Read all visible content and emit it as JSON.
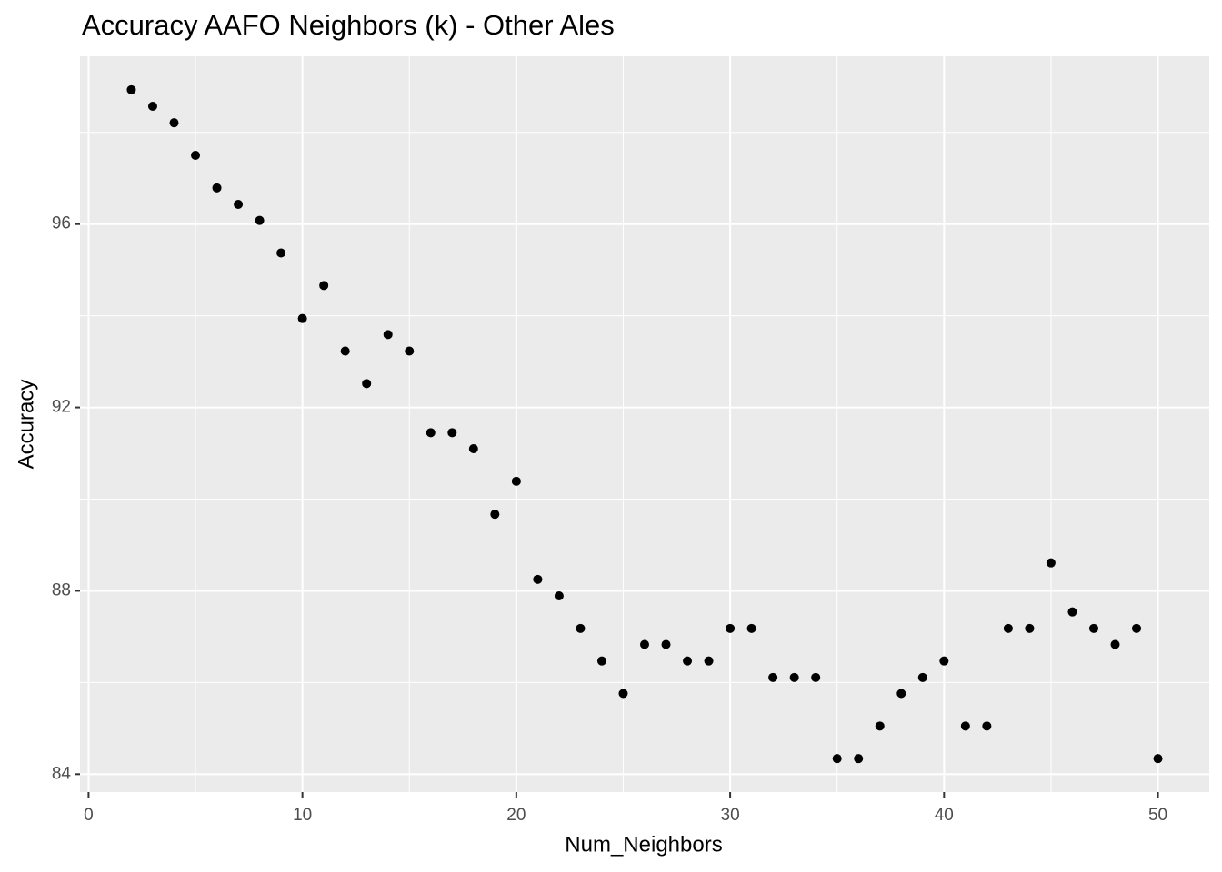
{
  "chart_data": {
    "type": "scatter",
    "title": "Accuracy AAFO Neighbors (k) - Other Ales",
    "x_label": "Num_Neighbors",
    "y_label": "Accuracy",
    "x": [
      2,
      3,
      4,
      5,
      6,
      7,
      8,
      9,
      10,
      11,
      12,
      13,
      14,
      15,
      16,
      17,
      18,
      19,
      20,
      21,
      22,
      23,
      24,
      25,
      26,
      27,
      28,
      29,
      30,
      31,
      32,
      33,
      34,
      35,
      36,
      37,
      38,
      39,
      40,
      41,
      42,
      43,
      44,
      45,
      46,
      47,
      48,
      49,
      50
    ],
    "values": [
      98.93,
      98.57,
      98.21,
      97.5,
      96.79,
      96.43,
      96.08,
      95.37,
      93.94,
      94.66,
      93.23,
      92.52,
      93.59,
      93.23,
      91.45,
      91.45,
      91.1,
      89.67,
      90.39,
      88.25,
      87.89,
      87.18,
      86.47,
      85.76,
      86.83,
      86.83,
      86.47,
      86.47,
      87.18,
      87.18,
      86.11,
      86.11,
      86.11,
      84.34,
      84.34,
      85.05,
      85.76,
      86.11,
      86.47,
      85.05,
      85.05,
      87.18,
      87.18,
      88.61,
      87.54,
      87.18,
      86.83,
      87.18,
      84.34
    ],
    "color": "#000000",
    "xlim": [
      -0.4,
      52.4
    ],
    "xticks": [
      0,
      10,
      20,
      30,
      40,
      50
    ],
    "ylim": [
      83.61,
      99.66
    ],
    "yticks": [
      84,
      88,
      92,
      96
    ],
    "grid": true,
    "panel_color": "#ebebeb"
  }
}
